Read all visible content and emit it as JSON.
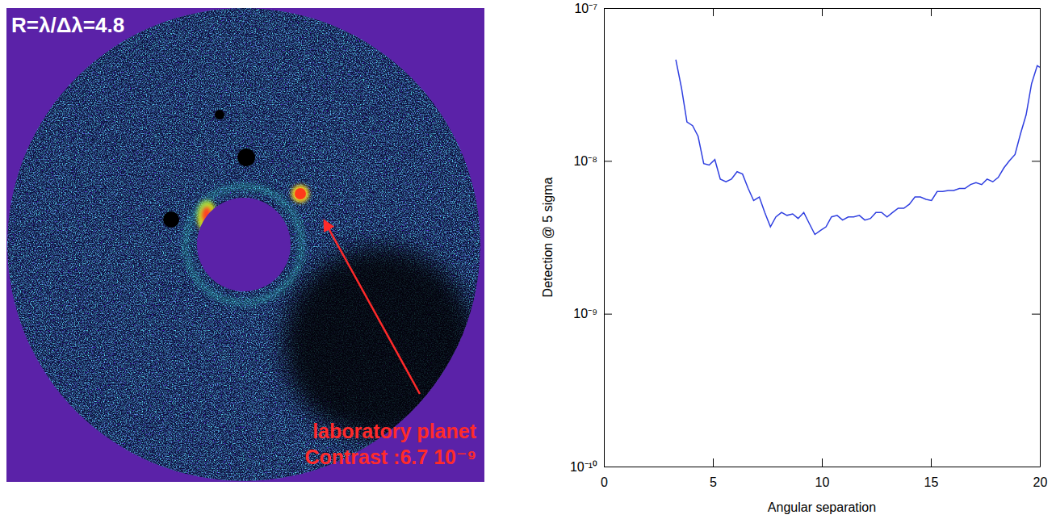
{
  "image_panel": {
    "title": "R=λ/Δλ=4.8",
    "annotation": [
      "laboratory planet",
      "Contrast :6.7 10⁻⁹"
    ]
  },
  "chart_data": {
    "type": "line",
    "xlabel": "Angular separation",
    "ylabel": "Detection @ 5 sigma",
    "x": [
      3.3,
      3.56,
      3.81,
      4.07,
      4.32,
      4.58,
      4.83,
      5.09,
      5.34,
      5.6,
      5.85,
      6.11,
      6.36,
      6.62,
      6.87,
      7.13,
      7.38,
      7.64,
      7.89,
      8.15,
      8.4,
      8.66,
      8.91,
      9.17,
      9.42,
      9.68,
      9.93,
      10.19,
      10.44,
      10.7,
      10.95,
      11.21,
      11.46,
      11.72,
      11.97,
      12.23,
      12.48,
      12.74,
      12.99,
      13.25,
      13.5,
      13.76,
      14.01,
      14.27,
      14.52,
      14.78,
      15.03,
      15.29,
      15.54,
      15.8,
      16.05,
      16.31,
      16.56,
      16.82,
      17.07,
      17.33,
      17.58,
      17.84,
      18.09,
      18.35,
      18.6,
      18.86,
      19.11,
      19.37,
      19.62,
      19.88,
      20
    ],
    "series": [
      {
        "color": "#2f3fe0",
        "values": [
          4.6e-08,
          3e-08,
          1.8e-08,
          1.7e-08,
          1.45e-08,
          9.6e-09,
          9.4e-09,
          1.02e-08,
          7.6e-09,
          7.3e-09,
          7.6e-09,
          8.5e-09,
          8.2e-09,
          6.6e-09,
          5.5e-09,
          5.8e-09,
          4.6e-09,
          3.7e-09,
          4.3e-09,
          4.6e-09,
          4.4e-09,
          4.5e-09,
          4.2e-09,
          4.6e-09,
          3.9e-09,
          3.3e-09,
          3.5e-09,
          3.7e-09,
          4.3e-09,
          4.4e-09,
          4.1e-09,
          4.3e-09,
          4.3e-09,
          4.4e-09,
          4.1e-09,
          4.2e-09,
          4.6e-09,
          4.6e-09,
          4.3e-09,
          4.6e-09,
          4.9e-09,
          4.9e-09,
          5.2e-09,
          5.8e-09,
          5.8e-09,
          5.6e-09,
          5.5e-09,
          6.3e-09,
          6.3e-09,
          6.4e-09,
          6.4e-09,
          6.6e-09,
          6.6e-09,
          7e-09,
          7.2e-09,
          7e-09,
          7.6e-09,
          7.3e-09,
          7.8e-09,
          9e-09,
          1e-08,
          1.1e-08,
          1.5e-08,
          2e-08,
          3.2e-08,
          4.2e-08,
          4.1e-08
        ]
      }
    ],
    "xlim": [
      0,
      20
    ],
    "xticks": [
      0,
      5,
      10,
      15,
      20
    ],
    "ylim": [
      1e-10,
      1e-07
    ],
    "yticks": [
      {
        "value": 1e-10,
        "label": "10⁻¹⁰"
      },
      {
        "value": 1e-09,
        "label": "10⁻⁹"
      },
      {
        "value": 1e-08,
        "label": "10⁻⁸"
      },
      {
        "value": 1e-07,
        "label": "10⁻⁷"
      }
    ],
    "log": "y"
  }
}
